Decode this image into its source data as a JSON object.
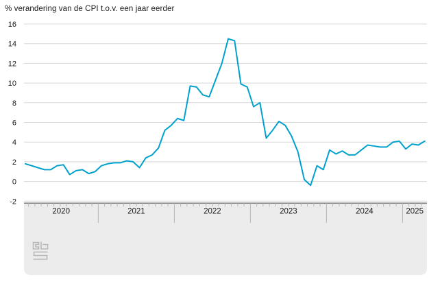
{
  "title": "% verandering van de CPI t.o.v. een jaar eerder",
  "logo": {
    "alt": "cbs"
  },
  "colors": {
    "line": "#00a1cd",
    "grid": "#d8d8d8",
    "axis": "#6e6e6e",
    "band_bg": "#ececec",
    "tick": "#b4b4b4",
    "text": "#1a1a1a",
    "logo": "#b8b8b8"
  },
  "chart_data": {
    "type": "line",
    "title": "% verandering van de CPI t.o.v. een jaar eerder",
    "xlabel": "",
    "ylabel": "%",
    "ylim": [
      -2,
      16
    ],
    "y_ticks": [
      16,
      14,
      12,
      10,
      8,
      6,
      4,
      2,
      0,
      -2
    ],
    "x_years": [
      "2020",
      "2021",
      "2022",
      "2023",
      "2024",
      "2025"
    ],
    "x_start_month": "2020-01",
    "x_end_month": "2025-04",
    "grid": true,
    "legend": false,
    "series": [
      {
        "name": "CPI, % verandering t.o.v. een jaar eerder",
        "values": [
          1.8,
          1.6,
          1.4,
          1.2,
          1.2,
          1.6,
          1.7,
          0.7,
          1.1,
          1.2,
          0.8,
          1.0,
          1.6,
          1.8,
          1.9,
          1.9,
          2.1,
          2.0,
          1.4,
          2.4,
          2.7,
          3.4,
          5.2,
          5.7,
          6.4,
          6.2,
          9.7,
          9.6,
          8.8,
          8.6,
          10.3,
          12.0,
          14.5,
          14.3,
          9.9,
          9.6,
          7.6,
          8.0,
          4.4,
          5.2,
          6.1,
          5.7,
          4.6,
          3.0,
          0.2,
          -0.4,
          1.6,
          1.2,
          3.2,
          2.8,
          3.1,
          2.7,
          2.7,
          3.2,
          3.7,
          3.6,
          3.5,
          3.5,
          4.0,
          4.1,
          3.3,
          3.8,
          3.7,
          4.1
        ]
      }
    ]
  }
}
